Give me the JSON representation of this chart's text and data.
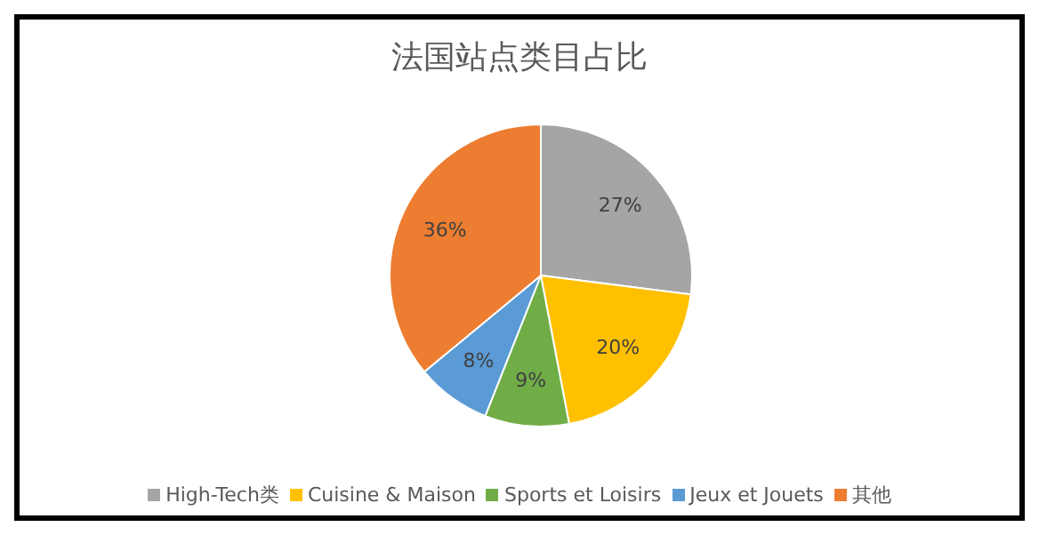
{
  "chart_data": {
    "type": "pie",
    "title": "法国站点类目占比",
    "categories": [
      "High-Tech类",
      "Cuisine & Maison",
      "Sports et Loisirs",
      "Jeux et Jouets",
      "其他"
    ],
    "values": [
      27,
      20,
      9,
      8,
      36
    ],
    "colors": [
      "#a5a5a5",
      "#ffc000",
      "#70ad47",
      "#5b9bd5",
      "#ed7d31"
    ],
    "value_labels": [
      "27%",
      "20%",
      "9%",
      "8%",
      "36%"
    ],
    "legend": "bottom"
  }
}
